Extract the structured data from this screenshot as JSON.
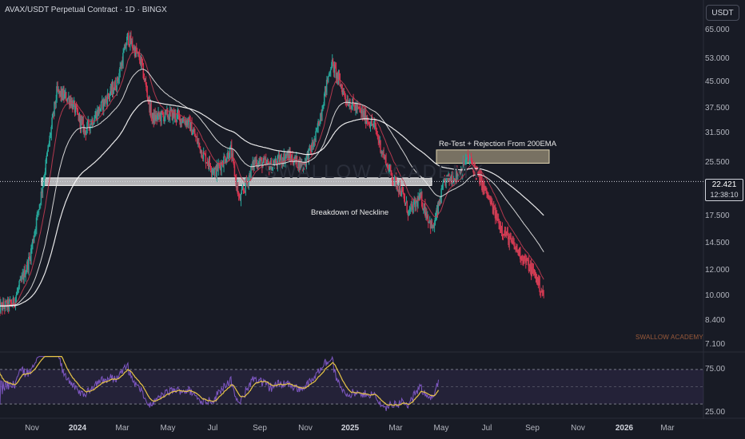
{
  "header": {
    "title": "AVAX/USDT Perpetual Contract · 1D · BINGX",
    "currency_button": "USDT"
  },
  "price_axis": {
    "ticks": [
      {
        "label": "65.000",
        "value": 65
      },
      {
        "label": "53.000",
        "value": 53
      },
      {
        "label": "45.000",
        "value": 45
      },
      {
        "label": "37.500",
        "value": 37.5
      },
      {
        "label": "31.500",
        "value": 31.5
      },
      {
        "label": "25.500",
        "value": 25.5
      },
      {
        "label": "17.500",
        "value": 17.5
      },
      {
        "label": "14.500",
        "value": 14.5
      },
      {
        "label": "12.000",
        "value": 12
      },
      {
        "label": "10.000",
        "value": 10
      },
      {
        "label": "8.400",
        "value": 8.4
      },
      {
        "label": "7.100",
        "value": 7.1
      }
    ],
    "current_price": "22.421",
    "countdown": "12:38:10",
    "current_value": 22.421
  },
  "rsi_axis": {
    "ticks": [
      {
        "label": "75.00",
        "value": 75
      },
      {
        "label": "25.00",
        "value": 25
      }
    ]
  },
  "time_axis": {
    "ticks": [
      {
        "label": "Nov",
        "major": false
      },
      {
        "label": "2024",
        "major": true
      },
      {
        "label": "Mar",
        "major": false
      },
      {
        "label": "May",
        "major": false
      },
      {
        "label": "Jul",
        "major": false
      },
      {
        "label": "Sep",
        "major": false
      },
      {
        "label": "Nov",
        "major": false
      },
      {
        "label": "2025",
        "major": true
      },
      {
        "label": "Mar",
        "major": false
      },
      {
        "label": "May",
        "major": false
      },
      {
        "label": "Jul",
        "major": false
      },
      {
        "label": "Sep",
        "major": false
      },
      {
        "label": "Nov",
        "major": false
      },
      {
        "label": "2026",
        "major": true
      },
      {
        "label": "Mar",
        "major": false
      }
    ]
  },
  "annotations": {
    "retest": "Re-Test + Rejection From 200EMA",
    "neckline": "Breakdown of Neckline"
  },
  "branding": {
    "watermark": "SWALLOW ACADEMY",
    "background_watermark": "SWALLOW ACADEMY"
  },
  "colors": {
    "background": "#181b25",
    "up": "#26a69a",
    "down": "#d9334f",
    "rsi_line": "#7e57c2",
    "rsi_signal": "#e8c547",
    "rsi_band": "#7e57c2",
    "zone_tan": "#c8b896",
    "zone_white": "#e8e8e8",
    "ema_white": "#ffffff"
  },
  "chart_data": {
    "type": "candlestick",
    "symbol": "AVAX/USDT",
    "timeframe": "1D",
    "y_scale": "log",
    "ylim": [
      7.1,
      65
    ],
    "zones": [
      {
        "label": "Re-Test + Rejection From 200EMA",
        "low": 25.5,
        "high": 28.0
      },
      {
        "label": "Breakdown of Neckline",
        "low": 21.8,
        "high": 23.0
      }
    ],
    "close_path": [
      {
        "date": "2023-10-01",
        "close": 9.2
      },
      {
        "date": "2023-10-20",
        "close": 9.5
      },
      {
        "date": "2023-11-10",
        "close": 13.0
      },
      {
        "date": "2023-11-25",
        "close": 20.5
      },
      {
        "date": "2023-12-15",
        "close": 42.0
      },
      {
        "date": "2024-01-01",
        "close": 40.0
      },
      {
        "date": "2024-01-20",
        "close": 32.0
      },
      {
        "date": "2024-02-10",
        "close": 38.0
      },
      {
        "date": "2024-03-01",
        "close": 45.0
      },
      {
        "date": "2024-03-15",
        "close": 62.0
      },
      {
        "date": "2024-04-01",
        "close": 52.0
      },
      {
        "date": "2024-04-15",
        "close": 35.0
      },
      {
        "date": "2024-05-10",
        "close": 36.0
      },
      {
        "date": "2024-06-01",
        "close": 34.0
      },
      {
        "date": "2024-06-20",
        "close": 27.0
      },
      {
        "date": "2024-07-05",
        "close": 24.0
      },
      {
        "date": "2024-07-25",
        "close": 28.0
      },
      {
        "date": "2024-08-05",
        "close": 19.5
      },
      {
        "date": "2024-08-25",
        "close": 26.0
      },
      {
        "date": "2024-09-15",
        "close": 25.0
      },
      {
        "date": "2024-10-05",
        "close": 27.0
      },
      {
        "date": "2024-10-25",
        "close": 25.0
      },
      {
        "date": "2024-11-10",
        "close": 30.0
      },
      {
        "date": "2024-12-01",
        "close": 52.0
      },
      {
        "date": "2024-12-20",
        "close": 40.0
      },
      {
        "date": "2025-01-10",
        "close": 36.0
      },
      {
        "date": "2025-01-25",
        "close": 33.0
      },
      {
        "date": "2025-02-10",
        "close": 25.0
      },
      {
        "date": "2025-02-28",
        "close": 21.0
      },
      {
        "date": "2025-03-10",
        "close": 18.0
      },
      {
        "date": "2025-03-25",
        "close": 20.0
      },
      {
        "date": "2025-04-10",
        "close": 16.0
      },
      {
        "date": "2025-04-25",
        "close": 22.4
      },
      {
        "date": "2025-05-15",
        "close": 24.0
      },
      {
        "date": "2025-05-25",
        "close": 26.5
      },
      {
        "date": "2025-06-05",
        "close": 24.0
      },
      {
        "date": "2025-06-20",
        "close": 20.0
      },
      {
        "date": "2025-07-05",
        "close": 16.5
      },
      {
        "date": "2025-07-20",
        "close": 14.5
      },
      {
        "date": "2025-08-05",
        "close": 13.0
      },
      {
        "date": "2025-08-20",
        "close": 11.5
      },
      {
        "date": "2025-08-30",
        "close": 10.0
      }
    ],
    "indicators": [
      "EMA",
      "EMA 200",
      "RSI"
    ],
    "rsi_levels": [
      75,
      25
    ]
  }
}
